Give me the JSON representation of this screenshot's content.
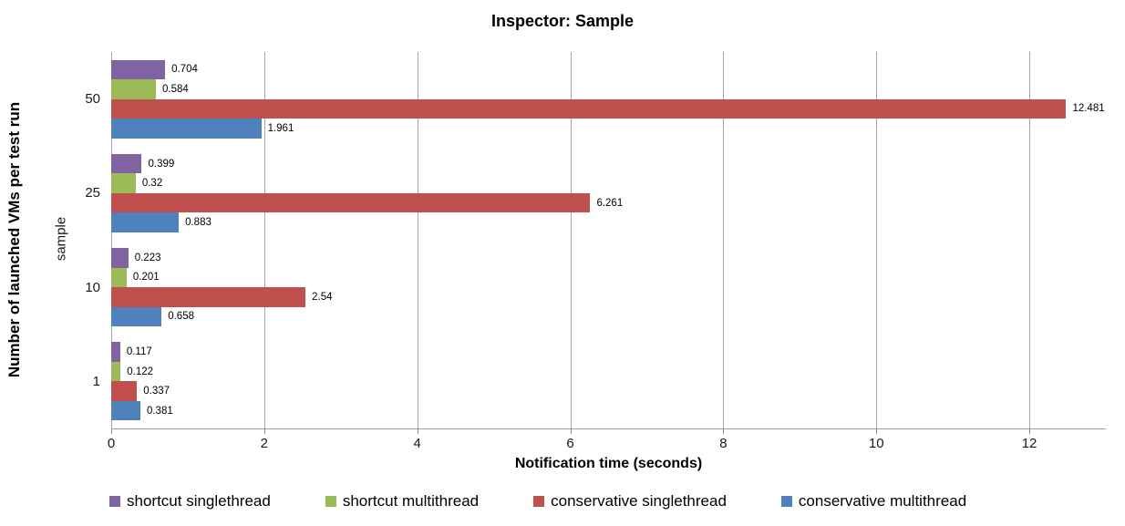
{
  "chart_data": {
    "type": "bar",
    "orientation": "horizontal",
    "title": "Inspector: Sample",
    "xlabel": "Notification time (seconds)",
    "ylabel": "Number of launched VMs per test run",
    "ylabel_secondary": "sample",
    "categories": [
      "50",
      "25",
      "10",
      "1"
    ],
    "series": [
      {
        "name": "shortcut singlethread",
        "color": "#8064A2",
        "values": [
          0.704,
          0.399,
          0.223,
          0.117
        ],
        "labels": [
          "0.704",
          "0.399",
          "0.223",
          "0.117"
        ]
      },
      {
        "name": "shortcut multithread",
        "color": "#9BBB59",
        "values": [
          0.584,
          0.32,
          0.201,
          0.122
        ],
        "labels": [
          "0.584",
          "0.32",
          "0.201",
          "0.122"
        ]
      },
      {
        "name": "conservative singlethread",
        "color": "#C0504D",
        "values": [
          12.481,
          6.261,
          2.54,
          0.337
        ],
        "labels": [
          "12.481",
          "6.261",
          "2.54",
          "0.337"
        ]
      },
      {
        "name": "conservative multithread",
        "color": "#4F81BD",
        "values": [
          1.961,
          0.883,
          0.658,
          0.381
        ],
        "labels": [
          "1.961",
          "0.883",
          "0.658",
          "0.381"
        ]
      }
    ],
    "x_ticks": [
      "0",
      "2",
      "4",
      "6",
      "8",
      "10",
      "12"
    ],
    "xlim": [
      0,
      13
    ],
    "grid": true,
    "gridline_color": "#A6A6A6",
    "axis_color": "#9C9C9C",
    "legend_position": "bottom"
  }
}
